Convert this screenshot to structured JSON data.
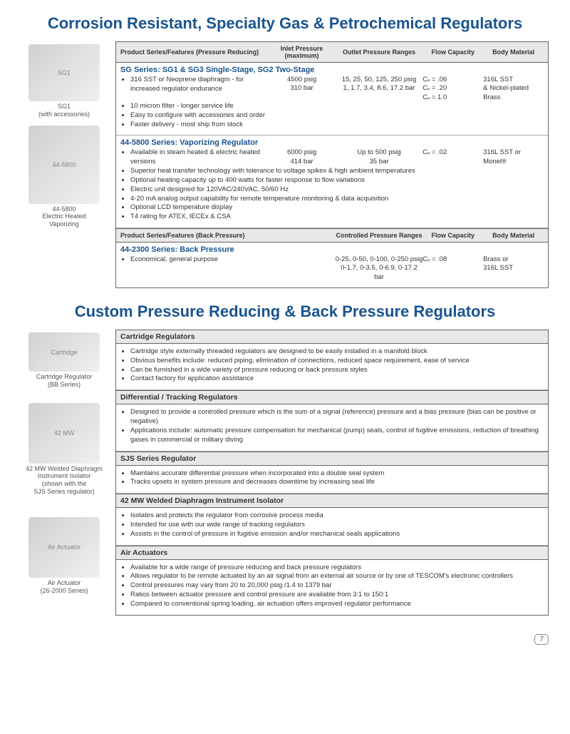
{
  "title1": "Corrosion Resistant, Specialty Gas & Petrochemical Regulators",
  "title2": "Custom Pressure Reducing & Back Pressure Regulators",
  "page_number": "7",
  "headers1": {
    "features": "Product Series/Features (Pressure Reducing)",
    "inlet": "Inlet Pressure (maximum)",
    "outlet": "Outlet Pressure Ranges",
    "flow": "Flow Capacity",
    "body": "Body Material"
  },
  "headers2": {
    "features": "Product Series/Features (Back Pressure)",
    "outlet": "Controlled Pressure Ranges",
    "flow": "Flow Capacity",
    "body": "Body Material"
  },
  "img_captions": {
    "sg1": "SG1\n(with accessories)",
    "v445800": "44-5800\nElectric Heated\nVaporizing",
    "cartridge": "Cartridge Regulator\n(BB Series)",
    "mw42": "42 MW Welded Diaphragm\nInstrument Isolator\n(shown with the\nSJS Series regulator)",
    "air": "Air Actuator\n(26-2000 Series)"
  },
  "sg": {
    "title": "SG Series:  SG1 & SG3 Single-Stage, SG2 Two-Stage",
    "feat": "316 SST or Neoprene diaphragm - for increased regulator endurance",
    "inlet1": "4500 psig",
    "inlet2": "310 bar",
    "outlet1": "15, 25, 50, 125, 250 psig",
    "outlet2": "1, 1.7, 3.4, 8.6, 17.2 bar",
    "flow1": "Cᵥ = .06",
    "flow2": "Cᵥ = .20",
    "flow3": "Cᵥ = 1.0",
    "body1": "316L SST",
    "body2": "& Nickel-plated",
    "body3": "Brass",
    "bullets": [
      "10 micron filter - longer service life",
      "Easy to configure with accessories and order",
      "Faster delivery - most ship from stock"
    ]
  },
  "v44": {
    "title": "44-5800 Series:  Vaporizing Regulator",
    "feat": "Available in steam heated & electric heated versions",
    "inlet1": "6000 psig",
    "inlet2": "414 bar",
    "outlet1": "Up to 500 psig",
    "outlet2": "35 bar",
    "flow1": "Cᵥ = .02",
    "body1": "316L SST or",
    "body2": "Monel®",
    "bullets": [
      "Superior heat transfer technology with tolerance to voltage spikes & high ambient temperatures",
      "Optional heating capacity up to 400 watts for faster response to flow variations",
      "Electric unit designed for 120VAC/240VAC, 50/60 Hz",
      "4-20 mA analog output capability for remote temperature monitoring & data acquisition",
      "Optional LCD temperature display",
      "T4 rating for ATEX, IECEx & CSA"
    ]
  },
  "bp": {
    "title": "44-2300 Series:  Back Pressure",
    "feat": "Economical, general purpose",
    "outlet1": "0-25, 0-50, 0-100, 0-250 psig",
    "outlet2": "0-1.7, 0-3.5, 0-6.9, 0-17.2 bar",
    "flow1": "Cᵥ = .08",
    "body1": "Brass or",
    "body2": "316L SST"
  },
  "custom": [
    {
      "header": "Cartridge Regulators",
      "bullets": [
        "Cartridge style externally threaded regulators are designed to be easily installed in a manifold block",
        "Obvious benefits include:  reduced piping, elimination of connections, reduced space requirement, ease of service",
        "Can be furnished in a wide variety of pressure reducing or back pressure styles",
        "Contact factory for application assistance"
      ]
    },
    {
      "header": "Differential / Tracking Regulators",
      "bullets": [
        "Designed to provide a controlled pressure which is the sum of a signal (reference) pressure and a bias pressure (bias can be positive or negative)",
        "Applications include: automatic pressure compensation for mechanical (pump) seals, control of fugitive emissions, reduction of breathing gases in commercial or military diving"
      ]
    },
    {
      "header": "SJS Series Regulator",
      "bullets": [
        "Maintains accurate differential pressure when incorporated into a double seal system",
        "Tracks upsets in system pressure and decreases downtime by increasing seal life"
      ]
    },
    {
      "header": "42 MW Welded Diaphragm Instrument Isolator",
      "bullets": [
        "Isolates and protects the regulator from corrosive process media",
        "Intended for use with our wide range of tracking regulators",
        "Assists in the control of pressure in fugitive emission and/or mechanical seals applications"
      ]
    },
    {
      "header": "Air Actuators",
      "bullets": [
        "Available for a wide range of pressure reducing and back pressure regulators",
        "Allows regulator to be remote actuated by an air signal from an external air source or by one of TESCOM's electronic controllers",
        "Control pressures may vary from 20 to 20,000 psig /1.4 to 1379 bar",
        "Ratios between actuator pressure and control pressure are available from 3:1 to 150:1",
        "Compared to conventional spring loading, air actuation offers improved regulator performance"
      ]
    }
  ]
}
